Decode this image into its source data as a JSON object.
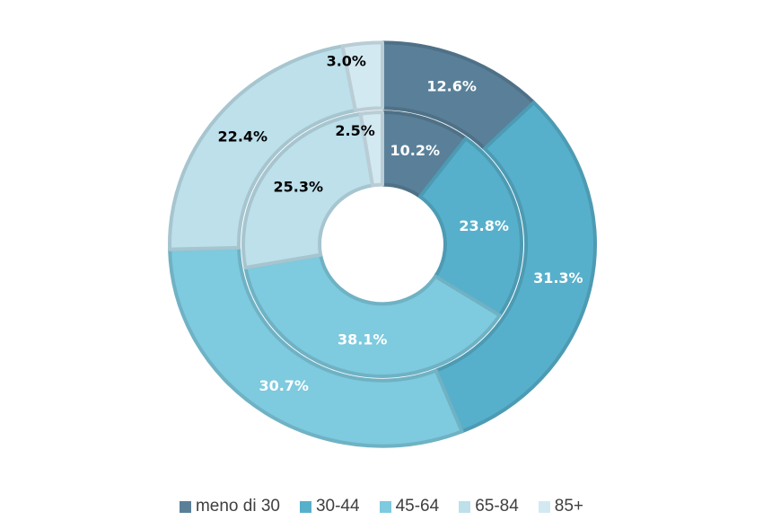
{
  "chart_data": {
    "type": "pie",
    "subtype": "double-donut",
    "categories": [
      "meno di 30",
      "30-44",
      "45-64",
      "65-84",
      "85+"
    ],
    "colors": [
      "#5a8099",
      "#57b0cb",
      "#7ecadf",
      "#bde0eb",
      "#d3e9f2"
    ],
    "label_colors": [
      "#ffffff",
      "#ffffff",
      "#ffffff",
      "#000000",
      "#000000"
    ],
    "series": [
      {
        "name": "outer",
        "values": [
          12.6,
          31.3,
          30.7,
          22.4,
          3.0
        ],
        "labels": [
          "12.6%",
          "31.3%",
          "30.7%",
          "22.4%",
          "3.0%"
        ]
      },
      {
        "name": "inner",
        "values": [
          10.2,
          23.8,
          38.1,
          25.3,
          2.5
        ],
        "labels": [
          "10.2%",
          "23.8%",
          "38.1%",
          "25.3%",
          "2.5%"
        ]
      }
    ],
    "legend_position": "bottom"
  }
}
